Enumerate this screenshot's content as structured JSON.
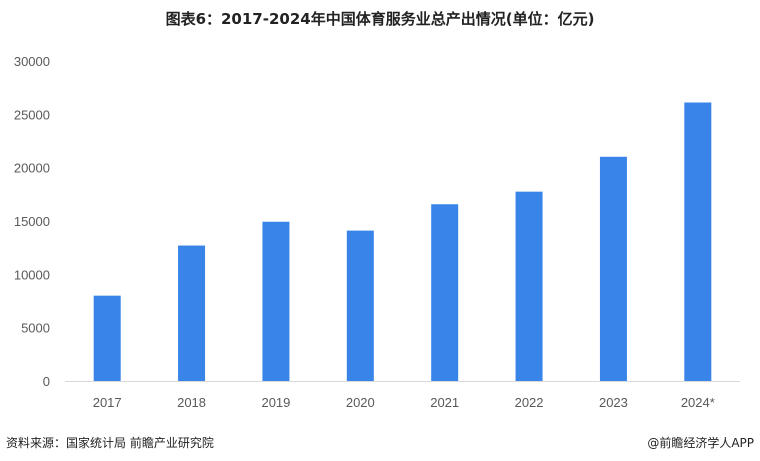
{
  "chart_data": {
    "type": "bar",
    "title": "图表6：2017-2024年中国体育服务业总产出情况(单位：亿元)",
    "categories": [
      "2017",
      "2018",
      "2019",
      "2020",
      "2021",
      "2022",
      "2023",
      "2024*"
    ],
    "values": [
      8000,
      12700,
      14930,
      14100,
      16570,
      17750,
      21020,
      26110
    ],
    "ylim": [
      0,
      30000
    ],
    "yticks": [
      "0",
      "5000",
      "10000",
      "15000",
      "20000",
      "25000",
      "30000"
    ],
    "xlabel": "",
    "ylabel": "",
    "grid": false,
    "bar_color": "#3884E8"
  },
  "footer": {
    "source": "资料来源：国家统计局 前瞻产业研究院",
    "brand": "@前瞻经济学人APP"
  }
}
